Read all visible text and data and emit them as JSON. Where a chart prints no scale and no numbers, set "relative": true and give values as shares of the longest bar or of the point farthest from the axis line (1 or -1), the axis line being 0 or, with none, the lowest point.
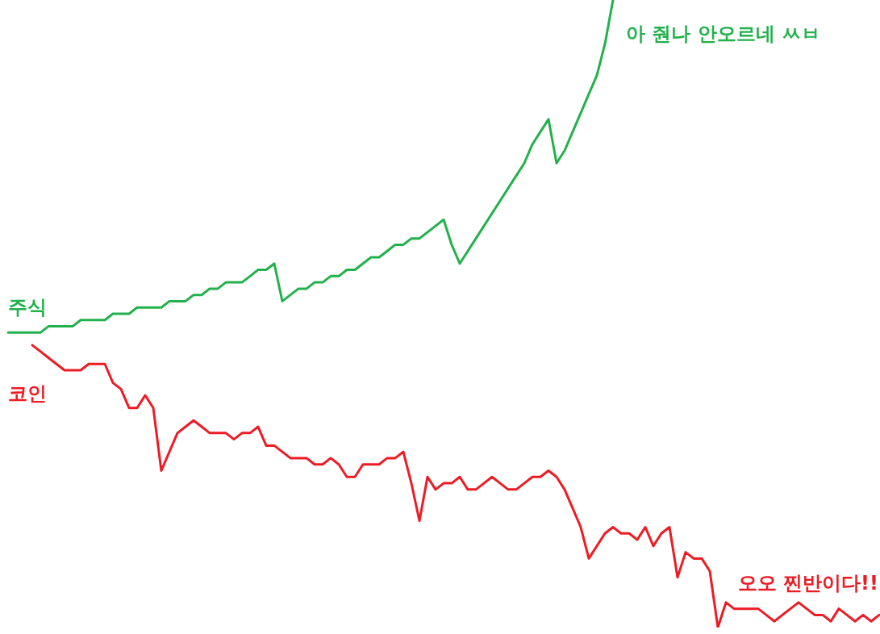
{
  "chart_data": {
    "type": "line",
    "relative": true,
    "categories": [
      null,
      null,
      null,
      null,
      null,
      null,
      null,
      null,
      null,
      null,
      null,
      null,
      null,
      null,
      null,
      null,
      null,
      null,
      null,
      null,
      null,
      null,
      null,
      null,
      null,
      null,
      null,
      null,
      null,
      null,
      null,
      null,
      null,
      null,
      null,
      null,
      null,
      null,
      null,
      null,
      null,
      null,
      null,
      null,
      null,
      null,
      null,
      null,
      null,
      null,
      null,
      null,
      null,
      null,
      null,
      null,
      null,
      null,
      null,
      null,
      null,
      null,
      null,
      null,
      null,
      null,
      null,
      null,
      null,
      null,
      null,
      null,
      null,
      null,
      null,
      null,
      null,
      null,
      null,
      null,
      null,
      null,
      null,
      null,
      null,
      null,
      null,
      null,
      null,
      null,
      null,
      null,
      null,
      null,
      null,
      null,
      null,
      null,
      null,
      null,
      null,
      null,
      null,
      null,
      null,
      null,
      null,
      null,
      null
    ],
    "series": [
      {
        "name": "주식",
        "color": "#22b14c",
        "values": [
          0.47,
          0.47,
          0.47,
          0.47,
          0.47,
          0.48,
          0.48,
          0.48,
          0.48,
          0.49,
          0.49,
          0.49,
          0.49,
          0.5,
          0.5,
          0.5,
          0.51,
          0.51,
          0.51,
          0.51,
          0.52,
          0.52,
          0.52,
          0.53,
          0.53,
          0.54,
          0.54,
          0.55,
          0.55,
          0.55,
          0.56,
          0.57,
          0.57,
          0.58,
          0.52,
          0.53,
          0.54,
          0.54,
          0.55,
          0.55,
          0.56,
          0.56,
          0.57,
          0.57,
          0.58,
          0.59,
          0.59,
          0.6,
          0.61,
          0.61,
          0.62,
          0.62,
          0.63,
          0.64,
          0.65,
          0.61,
          0.58,
          0.6,
          0.62,
          0.64,
          0.66,
          0.68,
          0.7,
          0.72,
          0.74,
          0.77,
          0.79,
          0.81,
          0.74,
          0.76,
          0.79,
          0.82,
          0.85,
          0.88,
          0.93,
          1.0,
          null,
          null,
          null,
          null,
          null,
          null,
          null,
          null,
          null,
          null,
          null,
          null,
          null,
          null,
          null,
          null,
          null,
          null,
          null,
          null,
          null,
          null,
          null,
          null,
          null,
          null,
          null,
          null,
          null,
          null,
          null,
          null,
          null
        ]
      },
      {
        "name": "코인",
        "color": "#ed1c24",
        "values": [
          null,
          null,
          null,
          0.45,
          0.44,
          0.43,
          0.42,
          0.41,
          0.41,
          0.41,
          0.42,
          0.42,
          0.42,
          0.39,
          0.38,
          0.35,
          0.35,
          0.37,
          0.35,
          0.25,
          0.28,
          0.31,
          0.32,
          0.33,
          0.32,
          0.31,
          0.31,
          0.31,
          0.3,
          0.31,
          0.31,
          0.32,
          0.29,
          0.29,
          0.28,
          0.27,
          0.27,
          0.27,
          0.26,
          0.26,
          0.27,
          0.26,
          0.24,
          0.24,
          0.26,
          0.26,
          0.26,
          0.27,
          0.27,
          0.28,
          0.23,
          0.17,
          0.24,
          0.22,
          0.23,
          0.23,
          0.24,
          0.22,
          0.22,
          0.23,
          0.24,
          0.23,
          0.22,
          0.22,
          0.23,
          0.24,
          0.24,
          0.25,
          0.24,
          0.22,
          0.19,
          0.16,
          0.11,
          0.13,
          0.15,
          0.16,
          0.15,
          0.15,
          0.14,
          0.16,
          0.13,
          0.15,
          0.16,
          0.08,
          0.12,
          0.11,
          0.11,
          0.09,
          0.0,
          0.04,
          0.03,
          0.03,
          0.03,
          0.03,
          0.02,
          0.01,
          0.02,
          0.03,
          0.04,
          0.03,
          0.02,
          0.02,
          0.01,
          0.03,
          0.02,
          0.01,
          0.02,
          0.01,
          0.02
        ]
      }
    ],
    "annotations": [
      "아 줜나 안오르네 ㅆㅂ",
      "오오 찐반이다!!"
    ]
  }
}
